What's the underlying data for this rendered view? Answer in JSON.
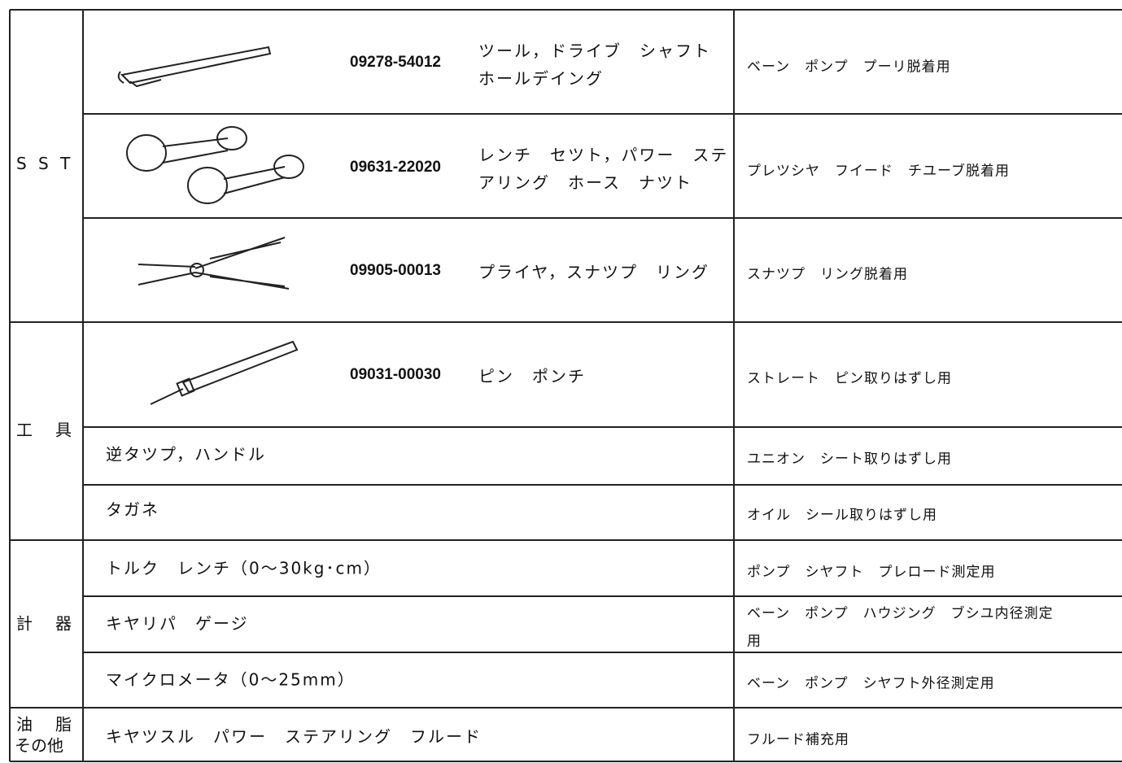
{
  "table": {
    "groups": [
      {
        "label": [
          "S S T"
        ],
        "rows": [
          {
            "part_no": "09278-54012",
            "name": [
              "ツール，ドライブ　シャフト",
              "ホールデイング"
            ],
            "usage": [
              "ベーン　ポンプ　プーリ脱着用"
            ]
          },
          {
            "part_no": "09631-22020",
            "name": [
              "レンチ　セツト，パワー　ステ",
              "アリング　ホース　ナツト"
            ],
            "usage": [
              "プレツシヤ　フイード　チユーブ脱着用"
            ]
          },
          {
            "part_no": "09905-00013",
            "name": [
              "プライヤ，スナツプ　リング"
            ],
            "usage": [
              "スナツプ　リング脱着用"
            ]
          }
        ]
      },
      {
        "label": [
          "工　具"
        ],
        "rows": [
          {
            "part_no": "09031-00030",
            "name": [
              "ピン　ポンチ"
            ],
            "usage": [
              "ストレート　ピン取りはずし用"
            ]
          },
          {
            "name": [
              "逆タツプ，ハンドル"
            ],
            "usage": [
              "ユニオン　シート取りはずし用"
            ]
          },
          {
            "name": [
              "タガネ"
            ],
            "usage": [
              "オイル　シール取りはずし用"
            ]
          }
        ]
      },
      {
        "label": [
          "計　器"
        ],
        "rows": [
          {
            "name": [
              "トルク　レンチ（0～30kg･cm）"
            ],
            "usage": [
              "ポンプ　シヤフト　プレロード測定用"
            ]
          },
          {
            "name": [
              "キヤリパ　ゲージ"
            ],
            "usage": [
              "ベーン　ポンプ　ハウジング　ブシユ内径測定",
              "用"
            ]
          },
          {
            "name": [
              "マイクロメータ（0～25mm）"
            ],
            "usage": [
              "ベーン　ポンプ　シヤフト外径測定用"
            ]
          }
        ]
      },
      {
        "label": [
          "油　脂",
          "その他"
        ],
        "rows": [
          {
            "name": [
              "キヤツスル　パワー　ステアリング　フルード"
            ],
            "usage": [
              "フルード補充用"
            ]
          }
        ]
      }
    ]
  }
}
